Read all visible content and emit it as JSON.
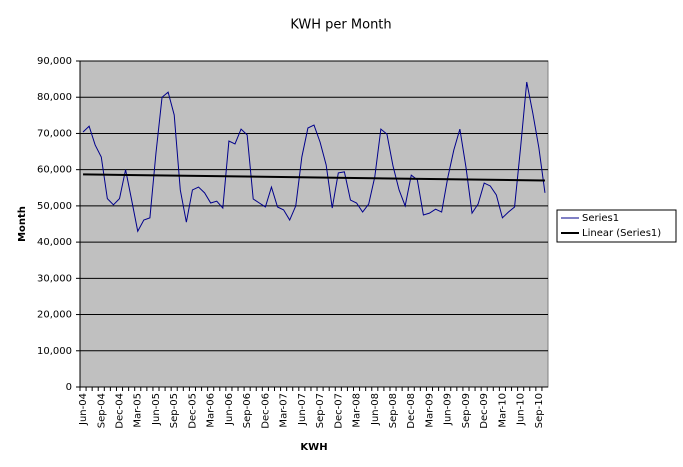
{
  "chart_data": {
    "type": "line",
    "title": "KWH per Month",
    "x_label": "KWH",
    "y_label": "Month",
    "categories": [
      "Jun-04",
      null,
      null,
      "Sep-04",
      null,
      null,
      "Dec-04",
      null,
      null,
      "Mar-05",
      null,
      null,
      "Jun-05",
      null,
      null,
      "Sep-05",
      null,
      null,
      "Dec-05",
      null,
      null,
      "Mar-06",
      null,
      null,
      "Jun-06",
      null,
      null,
      "Sep-06",
      null,
      null,
      "Dec-06",
      null,
      null,
      "Mar-07",
      null,
      null,
      "Jun-07",
      null,
      null,
      "Sep-07",
      null,
      null,
      "Dec-07",
      null,
      null,
      "Mar-08",
      null,
      null,
      "Jun-08",
      null,
      null,
      "Sep-08",
      null,
      null,
      "Dec-08",
      null,
      null,
      "Mar-09",
      null,
      null,
      "Jun-09",
      null,
      null,
      "Sep-09",
      null,
      null,
      "Dec-09",
      null,
      null,
      "Mar-10",
      null,
      null,
      "Jun-10",
      null,
      null,
      "Sep-10",
      null
    ],
    "series": [
      {
        "name": "Series1",
        "color": "#00008b",
        "values": [
          70400,
          72000,
          66800,
          63500,
          52000,
          50300,
          52000,
          60000,
          51600,
          43000,
          46100,
          46700,
          64600,
          80000,
          81400,
          75100,
          54400,
          45500,
          54400,
          55200,
          53600,
          50800,
          51300,
          49400,
          67900,
          67100,
          71200,
          69600,
          51900,
          50800,
          49700,
          55200,
          49700,
          48900,
          46100,
          50000,
          63500,
          71500,
          72300,
          67600,
          61300,
          49400,
          59100,
          59400,
          51600,
          50800,
          48300,
          50500,
          58000,
          71200,
          69800,
          61000,
          54400,
          50000,
          58500,
          57200,
          47500,
          48000,
          49100,
          48300,
          57700,
          65400,
          71200,
          60700,
          48000,
          50500,
          56300,
          55500,
          53000,
          46700,
          48300,
          49700,
          66300,
          84200,
          75600,
          66000,
          53600
        ]
      }
    ],
    "trendline": {
      "name": "Linear (Series1)",
      "color": "#000000",
      "start": 58700,
      "end": 57000
    },
    "ylim": [
      0,
      90000
    ],
    "yticks": [
      0,
      {
        "value": 10000,
        "label": "10,000"
      },
      {
        "value": 20000,
        "label": "20,000"
      },
      {
        "value": 30000,
        "label": "30,000"
      },
      {
        "value": 40000,
        "label": "40,000"
      },
      {
        "value": 50000,
        "label": "50,000"
      },
      {
        "value": 60000,
        "label": "60,000"
      },
      {
        "value": 70000,
        "label": "70,000"
      },
      {
        "value": 80000,
        "label": "80,000"
      },
      {
        "value": 90000,
        "label": "90,000"
      }
    ],
    "grid": true,
    "plot_background": "#c0c0c0",
    "legend": "right"
  }
}
